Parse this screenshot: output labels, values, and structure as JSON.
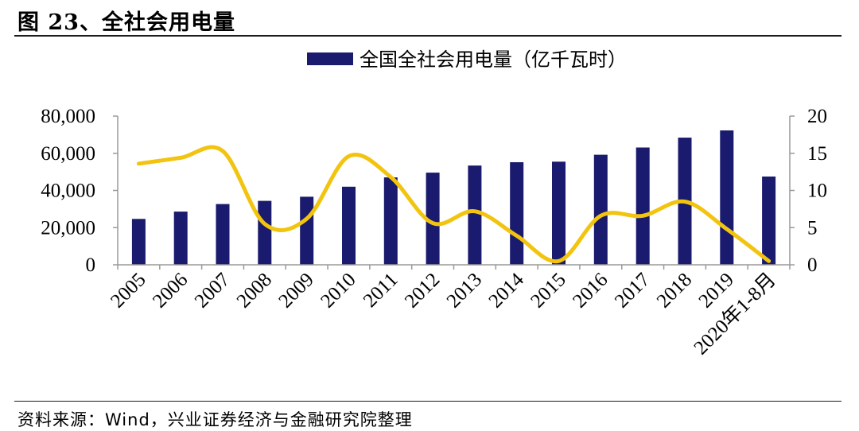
{
  "header": {
    "title": "图 23、全社会用电量"
  },
  "footer": {
    "source": "资料来源：Wind，兴业证券经济与金融研究院整理"
  },
  "colors": {
    "bar": "#1a1a6e",
    "line": "#f2c40f",
    "axis": "#9a9a9a"
  },
  "chart_data": {
    "type": "bar",
    "categories": [
      "2005",
      "2006",
      "2007",
      "2008",
      "2009",
      "2010",
      "2011",
      "2012",
      "2013",
      "2014",
      "2015",
      "2016",
      "2017",
      "2018",
      "2019",
      "2020年1-8月"
    ],
    "series": [
      {
        "name": "全国全社会用电量（亿千瓦时）",
        "type": "bar",
        "axis": "left",
        "values": [
          24700,
          28600,
          32700,
          34400,
          36600,
          42000,
          47000,
          49600,
          53400,
          55200,
          55500,
          59200,
          63100,
          68400,
          72300,
          47500
        ]
      },
      {
        "name": "",
        "type": "line",
        "axis": "right",
        "smooth": true,
        "values": [
          13.6,
          14.4,
          15.3,
          5.5,
          6.2,
          14.6,
          11.8,
          5.6,
          7.2,
          3.9,
          0.5,
          6.6,
          6.6,
          8.5,
          4.8,
          0.5
        ]
      }
    ],
    "left_axis": {
      "ylim": [
        0,
        80000
      ],
      "ticks": [
        "0",
        "20,000",
        "40,000",
        "60,000",
        "80,000"
      ]
    },
    "right_axis": {
      "ylim": [
        0,
        20
      ],
      "ticks": [
        "0",
        "5",
        "10",
        "15",
        "20"
      ]
    },
    "legend": {
      "position": "top-right"
    },
    "grid": false
  }
}
